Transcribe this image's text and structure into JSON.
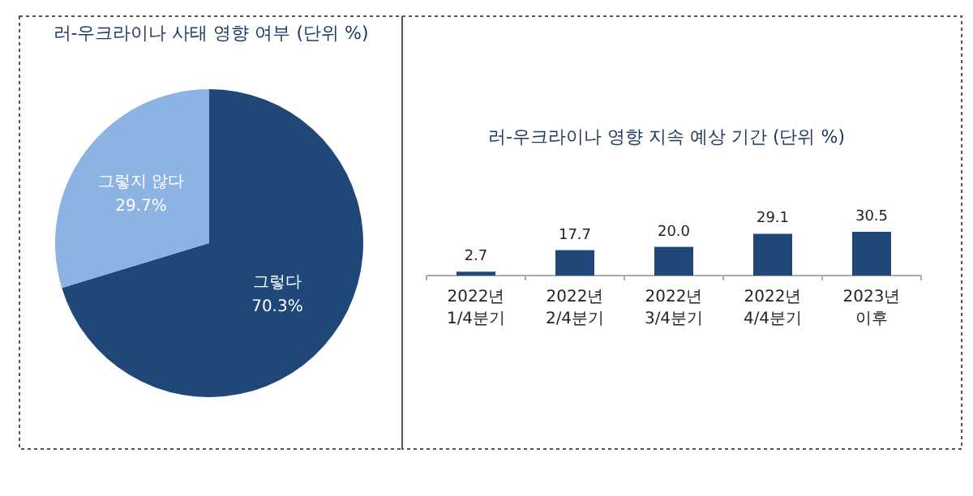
{
  "chart_data": [
    {
      "type": "pie",
      "title": "러-우크라이나 사태 영향 여부 (단위 %)",
      "categories": [
        "그렇다",
        "그렇지 않다"
      ],
      "values": [
        70.3,
        29.7
      ],
      "colors": [
        "#1f4778",
        "#8db3e2"
      ],
      "value_labels": [
        "70.3%",
        "29.7%"
      ]
    },
    {
      "type": "bar",
      "title": "러-우크라이나 영향 지속 예상 기간 (단위 %)",
      "categories": [
        "2022년\n1/4분기",
        "2022년\n2/4분기",
        "2022년\n3/4분기",
        "2022년\n4/4분기",
        "2023년\n이후"
      ],
      "values": [
        2.7,
        17.7,
        20.0,
        29.1,
        30.5
      ],
      "color": "#1f4778",
      "value_labels": [
        "2.7",
        "17.7",
        "20.0",
        "29.1",
        "30.5"
      ]
    }
  ]
}
